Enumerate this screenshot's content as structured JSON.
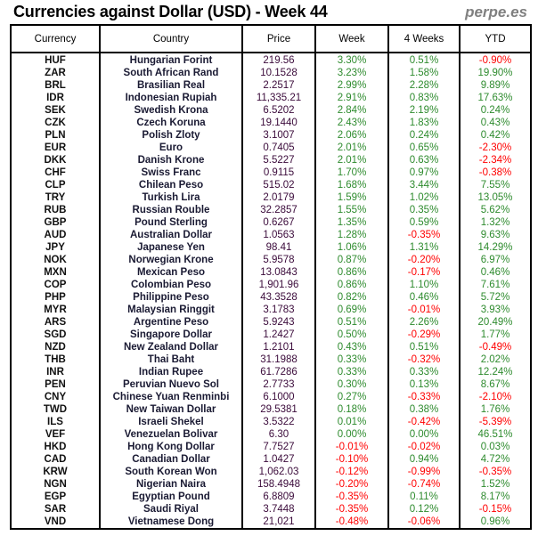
{
  "title": "Currencies against Dollar (USD) - Week 44",
  "brand": "perpe.es",
  "colors": {
    "positive": "#2e8b2e",
    "negative": "#ff0000"
  },
  "columns": [
    "Currency",
    "Country",
    "Price",
    "Week",
    "4 Weeks",
    "YTD"
  ],
  "rows": [
    [
      "HUF",
      "Hungarian Forint",
      "219.56",
      "3.30%",
      "0.51%",
      "-0.90%"
    ],
    [
      "ZAR",
      "South African Rand",
      "10.1528",
      "3.23%",
      "1.58%",
      "19.90%"
    ],
    [
      "BRL",
      "Brasilian Real",
      "2.2517",
      "2.99%",
      "2.28%",
      "9.89%"
    ],
    [
      "IDR",
      "Indonesian Rupiah",
      "11,335.21",
      "2.91%",
      "0.83%",
      "17.63%"
    ],
    [
      "SEK",
      "Swedish Krona",
      "6.5202",
      "2.84%",
      "2.19%",
      "0.24%"
    ],
    [
      "CZK",
      "Czech Koruna",
      "19.1440",
      "2.43%",
      "1.83%",
      "0.43%"
    ],
    [
      "PLN",
      "Polish Zloty",
      "3.1007",
      "2.06%",
      "0.24%",
      "0.42%"
    ],
    [
      "EUR",
      "Euro",
      "0.7405",
      "2.01%",
      "0.65%",
      "-2.30%"
    ],
    [
      "DKK",
      "Danish Krone",
      "5.5227",
      "2.01%",
      "0.63%",
      "-2.34%"
    ],
    [
      "CHF",
      "Swiss Franc",
      "0.9115",
      "1.70%",
      "0.97%",
      "-0.38%"
    ],
    [
      "CLP",
      "Chilean Peso",
      "515.02",
      "1.68%",
      "3.44%",
      "7.55%"
    ],
    [
      "TRY",
      "Turkish Lira",
      "2.0179",
      "1.59%",
      "1.02%",
      "13.05%"
    ],
    [
      "RUB",
      "Russian Rouble",
      "32.2857",
      "1.55%",
      "0.35%",
      "5.62%"
    ],
    [
      "GBP",
      "Pound Sterling",
      "0.6267",
      "1.35%",
      "0.59%",
      "1.32%"
    ],
    [
      "AUD",
      "Australian Dollar",
      "1.0563",
      "1.28%",
      "-0.35%",
      "9.63%"
    ],
    [
      "JPY",
      "Japanese Yen",
      "98.41",
      "1.06%",
      "1.31%",
      "14.29%"
    ],
    [
      "NOK",
      "Norwegian Krone",
      "5.9578",
      "0.87%",
      "-0.20%",
      "6.97%"
    ],
    [
      "MXN",
      "Mexican Peso",
      "13.0843",
      "0.86%",
      "-0.17%",
      "0.46%"
    ],
    [
      "COP",
      "Colombian Peso",
      "1,901.96",
      "0.86%",
      "1.10%",
      "7.61%"
    ],
    [
      "PHP",
      "Philippine Peso",
      "43.3528",
      "0.82%",
      "0.46%",
      "5.72%"
    ],
    [
      "MYR",
      "Malaysian Ringgit",
      "3.1783",
      "0.69%",
      "-0.01%",
      "3.93%"
    ],
    [
      "ARS",
      "Argentine Peso",
      "5.9243",
      "0.51%",
      "2.26%",
      "20.49%"
    ],
    [
      "SGD",
      "Singapore Dollar",
      "1.2427",
      "0.50%",
      "-0.29%",
      "1.77%"
    ],
    [
      "NZD",
      "New Zealand Dollar",
      "1.2101",
      "0.43%",
      "0.51%",
      "-0.49%"
    ],
    [
      "THB",
      "Thai Baht",
      "31.1988",
      "0.33%",
      "-0.32%",
      "2.02%"
    ],
    [
      "INR",
      "Indian Rupee",
      "61.7286",
      "0.33%",
      "0.33%",
      "12.24%"
    ],
    [
      "PEN",
      "Peruvian Nuevo Sol",
      "2.7733",
      "0.30%",
      "0.13%",
      "8.67%"
    ],
    [
      "CNY",
      "Chinese Yuan Renminbi",
      "6.1000",
      "0.27%",
      "-0.33%",
      "-2.10%"
    ],
    [
      "TWD",
      "New Taiwan Dollar",
      "29.5381",
      "0.18%",
      "0.38%",
      "1.76%"
    ],
    [
      "ILS",
      "Israeli Shekel",
      "3.5322",
      "0.01%",
      "-0.42%",
      "-5.39%"
    ],
    [
      "VEF",
      "Venezuelan Bolivar",
      "6.30",
      "0.00%",
      "0.00%",
      "46.51%"
    ],
    [
      "HKD",
      "Hong Kong Dollar",
      "7.7527",
      "-0.01%",
      "-0.02%",
      "0.03%"
    ],
    [
      "CAD",
      "Canadian Dollar",
      "1.0427",
      "-0.10%",
      "0.94%",
      "4.72%"
    ],
    [
      "KRW",
      "South Korean Won",
      "1,062.03",
      "-0.12%",
      "-0.99%",
      "-0.35%"
    ],
    [
      "NGN",
      "Nigerian Naira",
      "158.4948",
      "-0.20%",
      "-0.74%",
      "1.52%"
    ],
    [
      "EGP",
      "Egyptian Pound",
      "6.8809",
      "-0.35%",
      "0.11%",
      "8.17%"
    ],
    [
      "SAR",
      "Saudi Riyal",
      "3.7448",
      "-0.35%",
      "0.12%",
      "-0.15%"
    ],
    [
      "VND",
      "Vietnamese Dong",
      "21,021",
      "-0.48%",
      "-0.06%",
      "0.96%"
    ]
  ]
}
